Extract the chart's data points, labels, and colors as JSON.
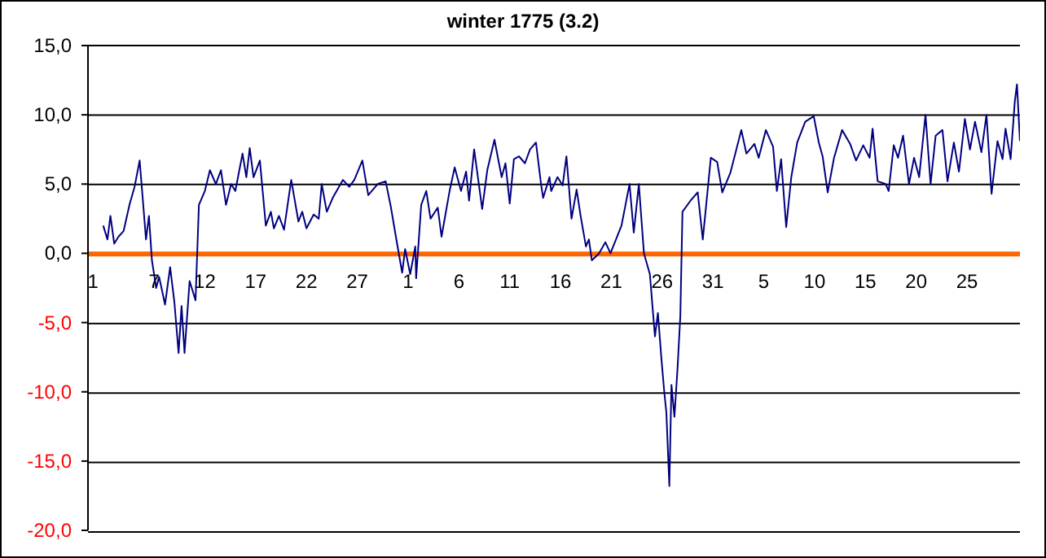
{
  "chart_data": {
    "type": "line",
    "title": "winter 1775 (3.2)",
    "x": [
      "1775-12-02T00:00",
      "1775-12-02T10:00",
      "1775-12-02T17:00",
      "1775-12-03T02:00",
      "1775-12-03T12:00",
      "1775-12-04T00:00",
      "1775-12-04T14:00",
      "1775-12-05T02:00",
      "1775-12-05T14:00",
      "1775-12-05T22:00",
      "1775-12-06T05:00",
      "1775-12-06T12:00",
      "1775-12-06T19:00",
      "1775-12-07T05:00",
      "1775-12-07T12:00",
      "1775-12-08T02:00",
      "1775-12-08T14:00",
      "1775-12-09T00:00",
      "1775-12-09T10:00",
      "1775-12-09T17:00",
      "1775-12-10T00:00",
      "1775-12-10T12:00",
      "1775-12-11T02:00",
      "1775-12-11T10:00",
      "1775-12-12T00:00",
      "1775-12-12T12:00",
      "1775-12-13T02:00",
      "1775-12-13T14:00",
      "1775-12-14T02:00",
      "1775-12-14T14:00",
      "1775-12-15T00:00",
      "1775-12-15T17:00",
      "1775-12-16T02:00",
      "1775-12-16T10:00",
      "1775-12-16T19:00",
      "1775-12-17T10:00",
      "1775-12-18T00:00",
      "1775-12-18T12:00",
      "1775-12-18T19:00",
      "1775-12-19T07:00",
      "1775-12-19T19:00",
      "1775-12-20T12:00",
      "1775-12-21T05:00",
      "1775-12-21T14:00",
      "1775-12-22T00:00",
      "1775-12-22T17:00",
      "1775-12-23T05:00",
      "1775-12-23T12:00",
      "1775-12-24T00:00",
      "1775-12-24T14:00",
      "1775-12-25T14:00",
      "1775-12-26T05:00",
      "1775-12-26T17:00",
      "1775-12-27T12:00",
      "1775-12-28T02:00",
      "1775-12-29T00:00",
      "1775-12-29T19:00",
      "1775-12-30T07:00",
      "1775-12-30T22:00",
      "1775-12-31T10:00",
      "1775-12-31T17:00",
      "1776-01-01T05:00",
      "1776-01-01T17:00",
      "1776-01-01T19:00",
      "1776-01-02T07:00",
      "1776-01-02T19:00",
      "1776-01-03T05:00",
      "1776-01-03T22:00",
      "1776-01-04T07:00",
      "1776-01-05T02:00",
      "1776-01-05T14:00",
      "1776-01-06T05:00",
      "1776-01-06T17:00",
      "1776-01-07T00:00",
      "1776-01-07T12:00",
      "1776-01-08T07:00",
      "1776-01-08T19:00",
      "1776-01-09T12:00",
      "1776-01-10T05:00",
      "1776-01-10T14:00",
      "1776-01-11T00:00",
      "1776-01-11T10:00",
      "1776-01-11T22:00",
      "1776-01-12T12:00",
      "1776-01-13T00:00",
      "1776-01-13T14:00",
      "1776-01-14T02:00",
      "1776-01-14T07:00",
      "1776-01-14T22:00",
      "1776-01-15T02:00",
      "1776-01-15T17:00",
      "1776-01-16T05:00",
      "1776-01-16T14:00",
      "1776-01-17T02:00",
      "1776-01-17T14:00",
      "1776-01-18T00:00",
      "1776-01-18T12:00",
      "1776-01-18T19:00",
      "1776-01-19T02:00",
      "1776-01-19T19:00",
      "1776-01-20T10:00",
      "1776-01-20T22:00",
      "1776-01-22T00:00",
      "1776-01-22T19:00",
      "1776-01-23T05:00",
      "1776-01-23T17:00",
      "1776-01-24T05:00",
      "1776-01-24T19:00",
      "1776-01-25T07:00",
      "1776-01-25T14:00",
      "1776-01-25T22:00",
      "1776-01-26T05:00",
      "1776-01-26T10:00",
      "1776-01-26T17:00",
      "1776-01-26T22:00",
      "1776-01-27T05:00",
      "1776-01-27T12:00",
      "1776-01-27T19:00",
      "1776-01-28T00:00",
      "1776-01-28T19:00",
      "1776-01-29T12:00",
      "1776-01-30T00:00",
      "1776-01-30T19:00",
      "1776-01-31T10:00",
      "1776-01-31T22:00",
      "1776-02-01T17:00",
      "1776-02-02T19:00",
      "1776-02-03T07:00",
      "1776-02-04T02:00",
      "1776-02-04T12:00",
      "1776-02-05T05:00",
      "1776-02-05T22:00",
      "1776-02-06T07:00",
      "1776-02-06T17:00",
      "1776-02-07T05:00",
      "1776-02-07T17:00",
      "1776-02-08T07:00",
      "1776-02-09T02:00",
      "1776-02-09T22:00",
      "1776-02-10T10:00",
      "1776-02-10T19:00",
      "1776-02-11T07:00",
      "1776-02-11T22:00",
      "1776-02-12T17:00",
      "1776-02-13T12:00",
      "1776-02-14T02:00",
      "1776-02-14T19:00",
      "1776-02-15T10:00",
      "1776-02-15T17:00",
      "1776-02-16T05:00",
      "1776-02-17T00:00",
      "1776-02-17T07:00",
      "1776-02-17T19:00",
      "1776-02-18T05:00",
      "1776-02-18T17:00",
      "1776-02-19T07:00",
      "1776-02-19T19:00",
      "1776-02-20T07:00",
      "1776-02-20T22:00",
      "1776-02-21T10:00",
      "1776-02-21T22:00",
      "1776-02-22T14:00",
      "1776-02-23T02:00",
      "1776-02-23T17:00",
      "1776-02-24T05:00",
      "1776-02-24T19:00",
      "1776-02-25T07:00",
      "1776-02-25T19:00",
      "1776-02-26T10:00",
      "1776-02-26T22:00",
      "1776-02-27T10:00",
      "1776-02-28T00:00",
      "1776-02-28T12:00",
      "1776-02-28T19:00",
      "1776-02-29T07:00",
      "1776-02-29T17:00",
      "1776-02-29T22:00",
      "1776-03-01T05:00"
    ],
    "series": [
      {
        "color": "#000080",
        "values": [
          2,
          1,
          2.7,
          0.7,
          1.2,
          1.6,
          3.5,
          4.8,
          6.7,
          3.7,
          1,
          2.7,
          -0.5,
          -2.5,
          -1.7,
          -3.7,
          -1,
          -3.5,
          -7.2,
          -3.8,
          -7.2,
          -2,
          -3.4,
          3.5,
          4.5,
          6,
          5,
          6,
          3.5,
          5,
          4.5,
          7.2,
          5.5,
          7.6,
          5.5,
          6.7,
          2,
          3,
          1.8,
          2.7,
          1.7,
          5.3,
          2.3,
          3,
          1.8,
          2.8,
          2.5,
          5,
          3,
          4,
          5.3,
          4.8,
          5.3,
          6.7,
          4.2,
          5,
          5.2,
          3.4,
          0.7,
          -1.4,
          0.3,
          -1.5,
          0.5,
          -1.8,
          3.5,
          4.5,
          2.5,
          3.3,
          1.2,
          4.5,
          6.2,
          4.5,
          5.9,
          3.8,
          7.5,
          3.2,
          6,
          8.2,
          5.5,
          6.5,
          3.6,
          6.8,
          7,
          6.5,
          7.5,
          8,
          5,
          4,
          5.5,
          4.5,
          5.5,
          4.9,
          7,
          2.5,
          4.6,
          2.6,
          0.5,
          1,
          -0.5,
          0,
          0.8,
          0,
          2,
          5,
          1.5,
          5,
          0,
          -1.5,
          -6,
          -4.3,
          -7.5,
          -10,
          -11.5,
          -16.8,
          -9.5,
          -11.8,
          -8.5,
          -4.5,
          3,
          3.8,
          4.4,
          1,
          6.9,
          6.6,
          4.4,
          5.8,
          8.9,
          7.2,
          7.9,
          6.9,
          8.9,
          7.7,
          4.5,
          6.8,
          1.9,
          5.5,
          8,
          9.5,
          9.9,
          8,
          7,
          4.4,
          6.9,
          8.9,
          7.9,
          6.7,
          7.8,
          6.9,
          9,
          5.2,
          5,
          4.5,
          7.8,
          6.9,
          8.5,
          5,
          6.9,
          5.5,
          10,
          5,
          8.5,
          8.9,
          5.2,
          8,
          5.9,
          9.7,
          7.5,
          9.5,
          7.3,
          10,
          4.3,
          8.1,
          6.8,
          9,
          6.8,
          11,
          12.2,
          8.1
        ]
      }
    ],
    "xlim": [
      "1775-11-30T12:00",
      "1776-03-01T05:00"
    ],
    "xticks": [
      {
        "value": "1775-12-01",
        "label": "1"
      },
      {
        "value": "1775-12-07",
        "label": "7"
      },
      {
        "value": "1775-12-12",
        "label": "12"
      },
      {
        "value": "1775-12-17",
        "label": "17"
      },
      {
        "value": "1775-12-22",
        "label": "22"
      },
      {
        "value": "1775-12-27",
        "label": "27"
      },
      {
        "value": "1776-01-01",
        "label": "1"
      },
      {
        "value": "1776-01-06",
        "label": "6"
      },
      {
        "value": "1776-01-11",
        "label": "11"
      },
      {
        "value": "1776-01-16",
        "label": "16"
      },
      {
        "value": "1776-01-21",
        "label": "21"
      },
      {
        "value": "1776-01-26",
        "label": "26"
      },
      {
        "value": "1776-01-31",
        "label": "31"
      },
      {
        "value": "1776-02-05",
        "label": "5"
      },
      {
        "value": "1776-02-10",
        "label": "10"
      },
      {
        "value": "1776-02-15",
        "label": "15"
      },
      {
        "value": "1776-02-20",
        "label": "20"
      },
      {
        "value": "1776-02-25",
        "label": "25"
      }
    ],
    "ylim": [
      -20,
      15
    ],
    "yticks": [
      {
        "value": -20,
        "label": "-20,0"
      },
      {
        "value": -15,
        "label": "-15,0"
      },
      {
        "value": -10,
        "label": "-10,0"
      },
      {
        "value": -5,
        "label": "-5,0"
      },
      {
        "value": 0,
        "label": "0,0"
      },
      {
        "value": 5,
        "label": "5,0"
      },
      {
        "value": 10,
        "label": "10,0"
      },
      {
        "value": 15,
        "label": "15,0"
      }
    ],
    "grid": "y"
  }
}
